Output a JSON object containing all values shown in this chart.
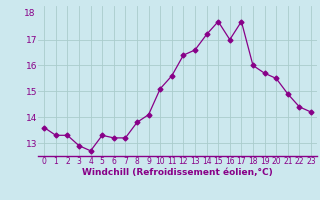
{
  "x": [
    0,
    1,
    2,
    3,
    4,
    5,
    6,
    7,
    8,
    9,
    10,
    11,
    12,
    13,
    14,
    15,
    16,
    17,
    18,
    19,
    20,
    21,
    22,
    23
  ],
  "y": [
    13.6,
    13.3,
    13.3,
    12.9,
    12.7,
    13.3,
    13.2,
    13.2,
    13.8,
    14.1,
    15.1,
    15.6,
    16.4,
    16.6,
    17.2,
    17.7,
    17.0,
    17.7,
    16.0,
    15.7,
    15.5,
    14.9,
    14.4,
    14.2
  ],
  "line_color": "#880088",
  "marker": "D",
  "marker_size": 2.5,
  "bg_color": "#cce8ee",
  "grid_color": "#aacccc",
  "xlabel": "Windchill (Refroidissement éolien,°C)",
  "xlabel_color": "#880088",
  "tick_color": "#880088",
  "ylim": [
    12.5,
    18.3
  ],
  "yticks": [
    13,
    14,
    15,
    16,
    17
  ],
  "ytick_labels": [
    "13",
    "14",
    "15",
    "16",
    "17"
  ],
  "ytop_label": "18",
  "xlim": [
    -0.5,
    23.5
  ],
  "ytick_fontsize": 6.5,
  "xtick_fontsize": 5.5,
  "xlabel_fontsize": 6.5
}
